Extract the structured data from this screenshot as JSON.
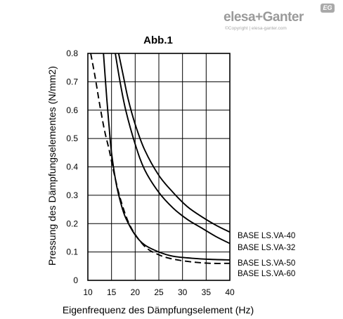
{
  "brand": {
    "name": "elesa+Ganter",
    "copyright": "©Copyright | elesa-ganter.com",
    "badge": "EG",
    "color": "#9a9a9a"
  },
  "chart_data": {
    "type": "line",
    "title": "Abb.1",
    "xlabel": "Eigenfrequenz des Dämpfungselement (Hz)",
    "ylabel": "Pressung des Dämpfungselementes (N/mm2)",
    "xlim": [
      10,
      40
    ],
    "ylim": [
      0,
      0.8
    ],
    "xticks": [
      10,
      15,
      20,
      25,
      30,
      35,
      40
    ],
    "yticks": [
      0,
      0.1,
      0.2,
      0.3,
      0.4,
      0.5,
      0.6,
      0.7,
      0.8
    ],
    "grid": true,
    "legend": "right",
    "series": [
      {
        "name": "BASE LS.VA-40",
        "style": "solid",
        "x": [
          16.5,
          17.5,
          18.5,
          20,
          22,
          25,
          28,
          31,
          34,
          37,
          40
        ],
        "y": [
          0.8,
          0.72,
          0.64,
          0.55,
          0.46,
          0.37,
          0.31,
          0.26,
          0.225,
          0.195,
          0.17
        ]
      },
      {
        "name": "BASE LS.VA-32",
        "style": "solid",
        "x": [
          15.8,
          16.8,
          18,
          20,
          22,
          25,
          28,
          31,
          34,
          37,
          40
        ],
        "y": [
          0.8,
          0.7,
          0.6,
          0.48,
          0.39,
          0.31,
          0.255,
          0.215,
          0.185,
          0.155,
          0.13
        ]
      },
      {
        "name": "BASE LS.VA-50",
        "style": "solid",
        "x": [
          13.3,
          14,
          14.5,
          15,
          16,
          17,
          18,
          20,
          22,
          25,
          28,
          32,
          36,
          40
        ],
        "y": [
          0.8,
          0.64,
          0.54,
          0.45,
          0.34,
          0.27,
          0.22,
          0.16,
          0.125,
          0.1,
          0.085,
          0.078,
          0.074,
          0.072
        ]
      },
      {
        "name": "BASE LS.VA-60",
        "style": "dashed",
        "x": [
          10.6,
          11.5,
          12.5,
          13.5,
          14.5,
          15.5,
          17,
          19,
          22,
          25,
          28,
          32,
          36,
          40
        ],
        "y": [
          0.8,
          0.72,
          0.62,
          0.53,
          0.46,
          0.38,
          0.28,
          0.19,
          0.12,
          0.09,
          0.075,
          0.065,
          0.06,
          0.06
        ]
      }
    ]
  }
}
